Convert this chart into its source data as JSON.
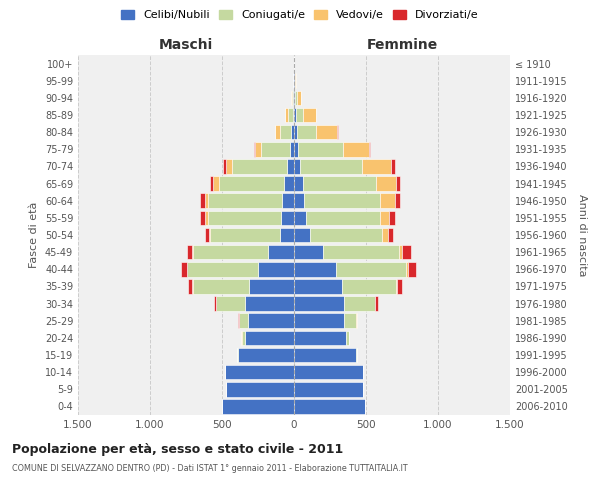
{
  "age_groups": [
    "0-4",
    "5-9",
    "10-14",
    "15-19",
    "20-24",
    "25-29",
    "30-34",
    "35-39",
    "40-44",
    "45-49",
    "50-54",
    "55-59",
    "60-64",
    "65-69",
    "70-74",
    "75-79",
    "80-84",
    "85-89",
    "90-94",
    "95-99",
    "100+"
  ],
  "birth_years": [
    "2006-2010",
    "2001-2005",
    "1996-2000",
    "1991-1995",
    "1986-1990",
    "1981-1985",
    "1976-1980",
    "1971-1975",
    "1966-1970",
    "1961-1965",
    "1956-1960",
    "1951-1955",
    "1946-1950",
    "1941-1945",
    "1936-1940",
    "1931-1935",
    "1926-1930",
    "1921-1925",
    "1916-1920",
    "1911-1915",
    "≤ 1910"
  ],
  "male_celibe": [
    500,
    470,
    480,
    390,
    340,
    320,
    340,
    310,
    250,
    180,
    100,
    90,
    80,
    70,
    50,
    30,
    20,
    10,
    8,
    4,
    2
  ],
  "male_coniugato": [
    0,
    0,
    2,
    5,
    20,
    60,
    200,
    390,
    490,
    520,
    480,
    510,
    520,
    450,
    380,
    200,
    80,
    30,
    5,
    2,
    0
  ],
  "male_vedovo": [
    0,
    0,
    0,
    0,
    5,
    5,
    5,
    5,
    5,
    5,
    10,
    15,
    20,
    40,
    40,
    40,
    30,
    20,
    5,
    2,
    0
  ],
  "male_divorziato": [
    0,
    0,
    0,
    0,
    0,
    5,
    10,
    30,
    40,
    40,
    30,
    35,
    30,
    25,
    20,
    5,
    0,
    0,
    0,
    0,
    0
  ],
  "female_celibe": [
    490,
    480,
    480,
    430,
    360,
    350,
    350,
    330,
    290,
    200,
    110,
    80,
    70,
    60,
    45,
    30,
    20,
    15,
    10,
    5,
    2
  ],
  "female_coniugato": [
    0,
    0,
    2,
    5,
    25,
    80,
    210,
    380,
    490,
    530,
    500,
    520,
    530,
    510,
    430,
    310,
    130,
    45,
    10,
    2,
    0
  ],
  "female_vedovo": [
    0,
    0,
    0,
    0,
    0,
    5,
    5,
    5,
    15,
    20,
    40,
    60,
    100,
    140,
    200,
    180,
    150,
    90,
    30,
    5,
    0
  ],
  "female_divorziato": [
    0,
    0,
    0,
    0,
    0,
    5,
    15,
    35,
    50,
    60,
    40,
    40,
    35,
    25,
    25,
    10,
    5,
    0,
    0,
    0,
    0
  ],
  "color_celibe": "#4472c4",
  "color_coniugato": "#c5d9a0",
  "color_vedovo": "#f9c36e",
  "color_divorziato": "#d9282c",
  "title_main": "Popolazione per età, sesso e stato civile - 2011",
  "title_sub": "COMUNE DI SELVAZZANO DENTRO (PD) - Dati ISTAT 1° gennaio 2011 - Elaborazione TUTTAITALIA.IT",
  "xlabel_left": "Maschi",
  "xlabel_right": "Femmine",
  "ylabel_left": "Fasce di età",
  "ylabel_right": "Anni di nascita",
  "xlim": 1500,
  "bg_color": "#f0f0f0",
  "grid_color": "#cccccc",
  "legend_labels": [
    "Celibi/Nubili",
    "Coniugati/e",
    "Vedovi/e",
    "Divorziati/e"
  ]
}
